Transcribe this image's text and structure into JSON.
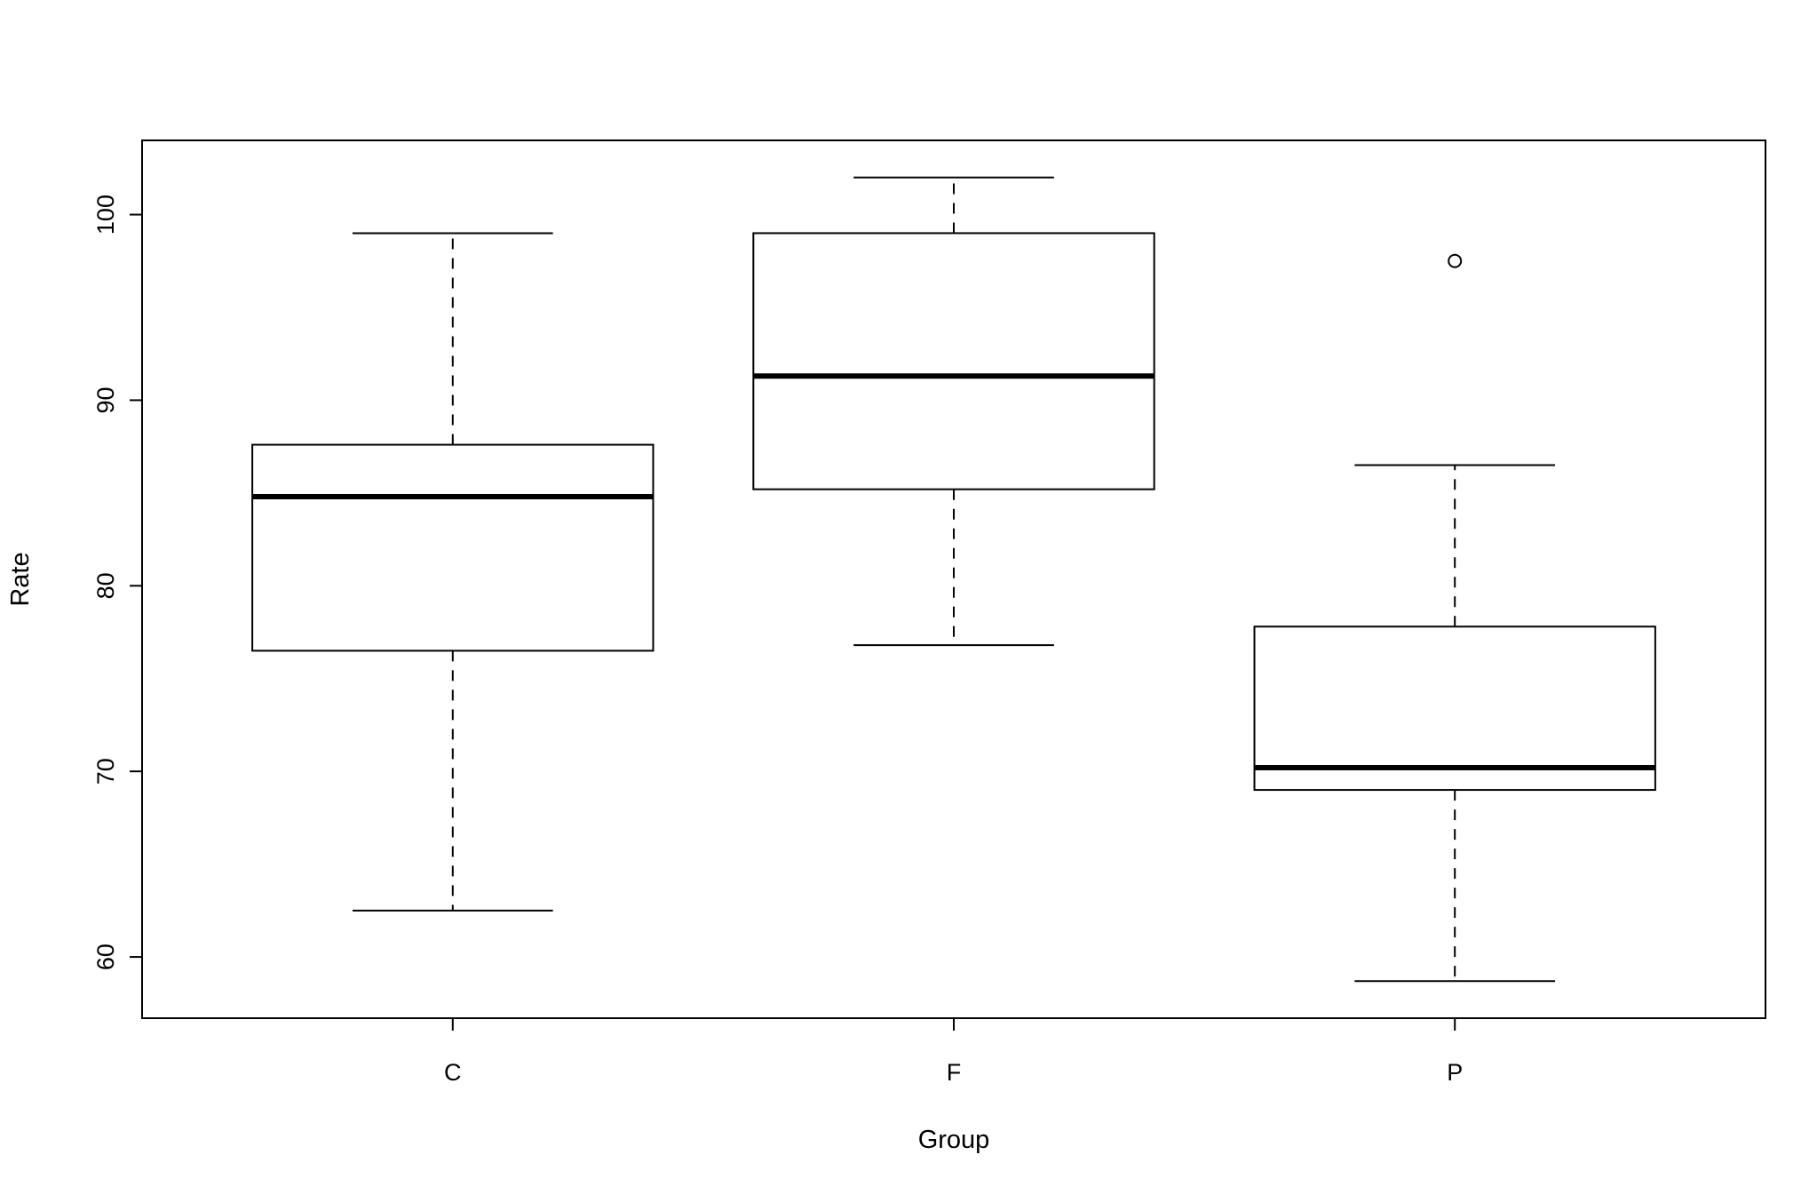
{
  "chart_data": {
    "type": "boxplot",
    "title": "",
    "xlabel": "Group",
    "ylabel": "Rate",
    "categories": [
      "C",
      "F",
      "P"
    ],
    "y_axis": {
      "ticks": [
        60,
        70,
        80,
        90,
        100
      ],
      "range": [
        56.7,
        104.0
      ]
    },
    "ylim": [
      56.7,
      104.0
    ],
    "grid": false,
    "legend": "none",
    "colors": {
      "line": "#000000",
      "fill": "#ffffff",
      "background": "#ffffff"
    },
    "series": [
      {
        "group": "C",
        "lower_whisker": 62.5,
        "q1": 76.5,
        "median": 84.8,
        "q3": 87.6,
        "upper_whisker": 99.0,
        "outliers": []
      },
      {
        "group": "F",
        "lower_whisker": 76.8,
        "q1": 85.2,
        "median": 91.3,
        "q3": 99.0,
        "upper_whisker": 102.0,
        "outliers": []
      },
      {
        "group": "P",
        "lower_whisker": 58.7,
        "q1": 69.0,
        "median": 70.2,
        "q3": 77.8,
        "upper_whisker": 86.5,
        "outliers": [
          97.5
        ]
      }
    ]
  }
}
